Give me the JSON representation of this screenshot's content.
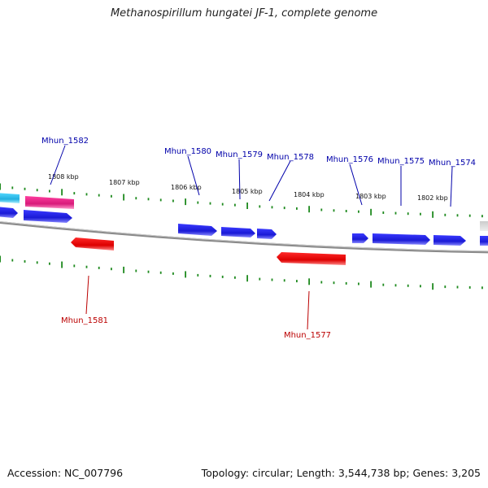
{
  "title": "Methanospirillum hungatei JF-1, complete genome",
  "footer": {
    "accession": "Accession: NC_007796",
    "summary": "Topology: circular; Length: 3,544,738 bp; Genes: 3,205"
  },
  "colors": {
    "forward_gene": "#1a1ae6",
    "reverse_gene": "#ee1111",
    "highlight_gene": "#e8288c",
    "cyan_gene": "#33c4ee",
    "grey_gene": "#bbbbbb",
    "backbone": "#8a8a8a",
    "ticks": "#1f8a1f",
    "forward_label": "#0000aa",
    "reverse_label": "#bb0000"
  },
  "kbp_labels": [
    "1808 kbp",
    "1807 kbp",
    "1806 kbp",
    "1805 kbp",
    "1804 kbp",
    "1803 kbp",
    "1802 kbp"
  ],
  "forward_labels": [
    "Mhun_1582",
    "Mhun_1580",
    "Mhun_1579",
    "Mhun_1578",
    "Mhun_1576",
    "Mhun_1575",
    "Mhun_1574"
  ],
  "reverse_labels": [
    "Mhun_1581",
    "Mhun_1577"
  ]
}
